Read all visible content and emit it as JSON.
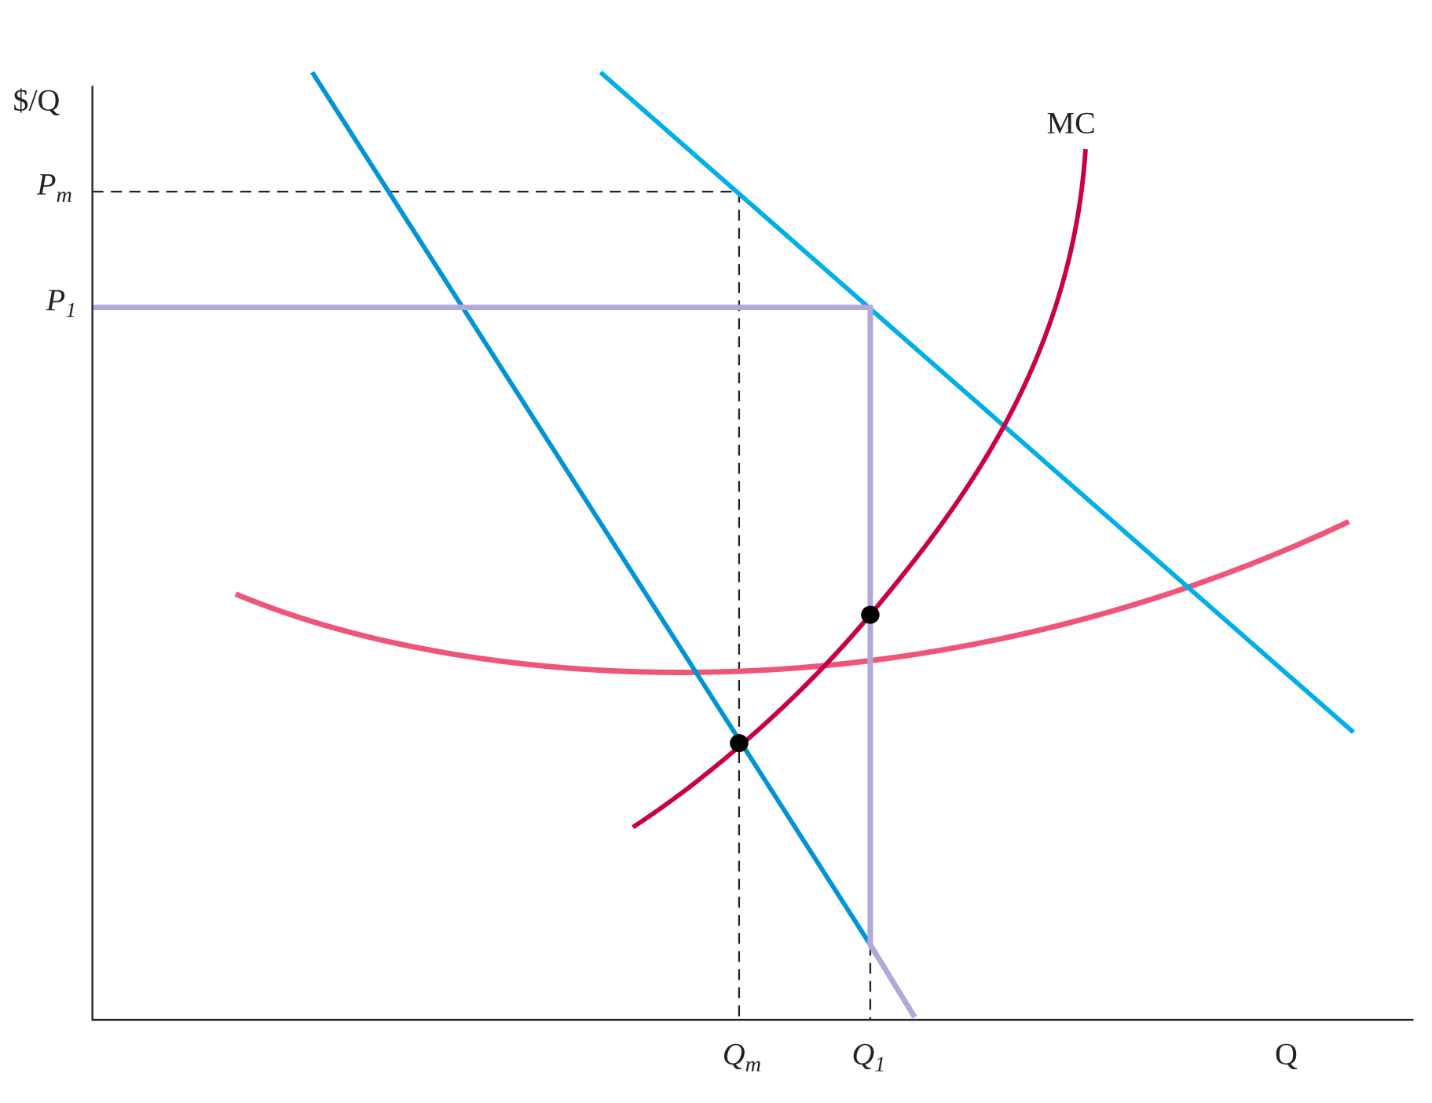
{
  "axis_labels": {
    "y": "$/Q",
    "x": "Q"
  },
  "price_labels": [
    {
      "main": "P",
      "sub": "m"
    },
    {
      "main": "P",
      "sub": "1"
    }
  ],
  "quantity_labels": [
    {
      "main": "Q",
      "sub": "m"
    },
    {
      "main": "Q",
      "sub": "1"
    }
  ],
  "curve_labels": {
    "mc": "MC"
  }
}
